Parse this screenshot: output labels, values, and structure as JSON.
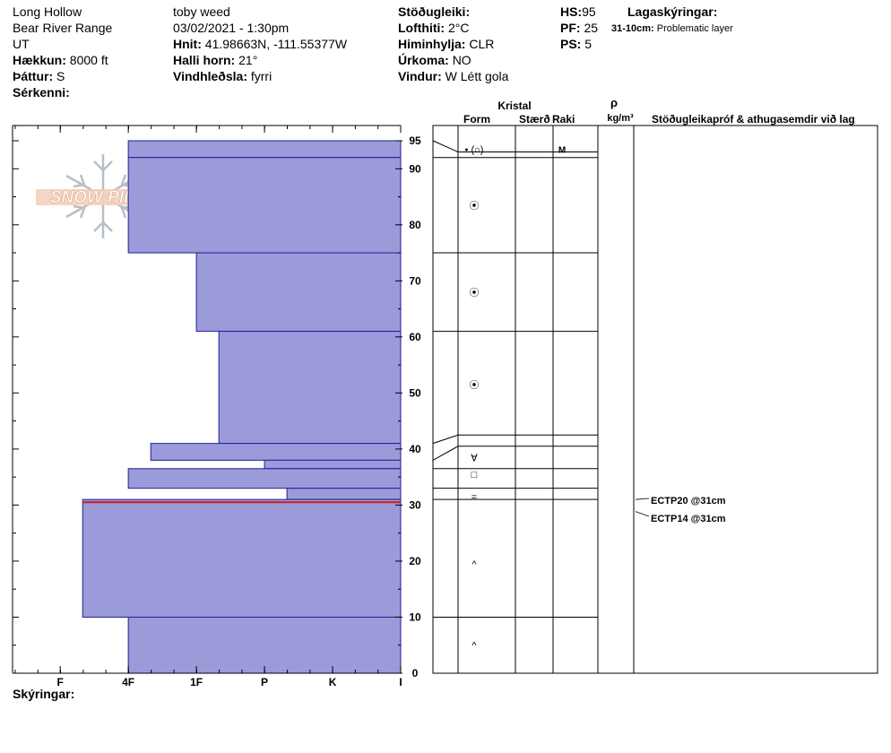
{
  "header": {
    "location": "Long Hollow",
    "range": "Bear River Range",
    "state": "UT",
    "elevation_label": "Hækkun:",
    "elevation_value": "8000 ft",
    "aspect_label": "Þáttur:",
    "aspect_value": "S",
    "features_label": "Sérkenni:",
    "observer": "toby weed",
    "datetime": "03/02/2021 - 1:30pm",
    "coords_label": "Hnit:",
    "coords_value": "41.98663N, -111.55377W",
    "slope_label": "Halli horn:",
    "slope_value": "21°",
    "wind_loading_label": "Vindhleðsla:",
    "wind_loading_value": "fyrri",
    "stability_label": "Stöðugleiki:",
    "air_temp_label": "Lofthiti:",
    "air_temp_value": "2°C",
    "sky_label": "Himinhylja:",
    "sky_value": "CLR",
    "precip_label": "Úrkoma:",
    "precip_value": "NO",
    "wind_label": "Vindur:",
    "wind_value": "W Létt gola",
    "hs_label": "HS:",
    "hs_value": "95",
    "pf_label": "PF:",
    "pf_value": "25",
    "ps_label": "PS:",
    "ps_value": "5",
    "legend_title": "Lagaskýringar:",
    "legend_key": "31-10cm:",
    "legend_text": "Problematic layer"
  },
  "logo_text": "SNOW PILOT",
  "footer_label": "Skýringar:",
  "table_headers": {
    "crystal": "Kristal",
    "form": "Form",
    "size": "Stærð",
    "moisture": "Raki",
    "rho": "ρ",
    "density_unit": "kg/m³",
    "comments": "Stöðugleikapróf & athugasemdir við lag"
  },
  "chart_data": {
    "type": "bar",
    "orientation": "horizontal",
    "ylim": [
      0,
      95
    ],
    "y_ticks": [
      0,
      10,
      20,
      30,
      40,
      50,
      60,
      70,
      80,
      90,
      95
    ],
    "hardness_ticks": [
      "I",
      "K",
      "P",
      "1F",
      "4F",
      "F"
    ],
    "hardness_scale": [
      {
        "label": "I",
        "value": 0
      },
      {
        "label": "K",
        "value": 1
      },
      {
        "label": "P",
        "value": 2
      },
      {
        "label": "1F",
        "value": 3
      },
      {
        "label": "4F",
        "value": 4
      },
      {
        "label": "F",
        "value": 5
      }
    ],
    "hardness_max": 5.7,
    "layers": [
      {
        "top": 95,
        "bottom": 92,
        "hardness": 4.0
      },
      {
        "top": 92,
        "bottom": 75,
        "hardness": 4.0
      },
      {
        "top": 75,
        "bottom": 61,
        "hardness": 3.0
      },
      {
        "top": 61,
        "bottom": 41,
        "hardness": 2.67
      },
      {
        "top": 41,
        "bottom": 38,
        "hardness": 3.67
      },
      {
        "top": 38,
        "bottom": 36.5,
        "hardness": 2.0
      },
      {
        "top": 36.5,
        "bottom": 33,
        "hardness": 4.0
      },
      {
        "top": 33,
        "bottom": 31,
        "hardness": 1.67
      },
      {
        "top": 31,
        "bottom": 10,
        "hardness": 4.67
      },
      {
        "top": 10,
        "bottom": 0,
        "hardness": 4.0
      }
    ],
    "problem_line": 30.5,
    "crystal_rows": [
      {
        "top": 95,
        "bottom": 92,
        "right_top": 93,
        "right_bottom": 92
      },
      {
        "top": 92,
        "bottom": 75,
        "right_top": 92,
        "right_bottom": 91.5
      },
      {
        "top": 75,
        "bottom": 61,
        "right_top": 75,
        "right_bottom": 75
      },
      {
        "top": 61,
        "bottom": 41,
        "right_top": 61,
        "right_bottom": 61
      },
      {
        "top": 41,
        "bottom": 38,
        "right_top": 42.5,
        "right_bottom": 40.5
      },
      {
        "top": 38,
        "bottom": 36.5,
        "right_top": 40.5,
        "right_bottom": 38
      },
      {
        "top": 36.5,
        "bottom": 33,
        "right_top": 36.5,
        "right_bottom": 36
      },
      {
        "top": 33,
        "bottom": 31,
        "right_top": 33,
        "right_bottom": 33
      },
      {
        "top": 31,
        "bottom": 10,
        "right_top": 31,
        "right_bottom": 29.5
      },
      {
        "top": 10,
        "bottom": 0,
        "right_top": 10,
        "right_bottom": 10
      }
    ],
    "crystal_forms": [
      {
        "depth": 93.5,
        "form": "• (○)",
        "moisture": "M"
      },
      {
        "depth": 83.5,
        "form": "⦿"
      },
      {
        "depth": 68,
        "form": "⦿"
      },
      {
        "depth": 51.5,
        "form": "⦿"
      },
      {
        "depth": 38.5,
        "form": "∀"
      },
      {
        "depth": 35.5,
        "form": "□"
      },
      {
        "depth": 31.5,
        "form": "="
      },
      {
        "depth": 19.5,
        "form": "^"
      },
      {
        "depth": 5,
        "form": "^"
      }
    ],
    "tests": [
      {
        "label": "ECTP20 @31cm",
        "depth": 31
      },
      {
        "label": "ECTP14 @31cm",
        "depth": 29
      }
    ]
  }
}
